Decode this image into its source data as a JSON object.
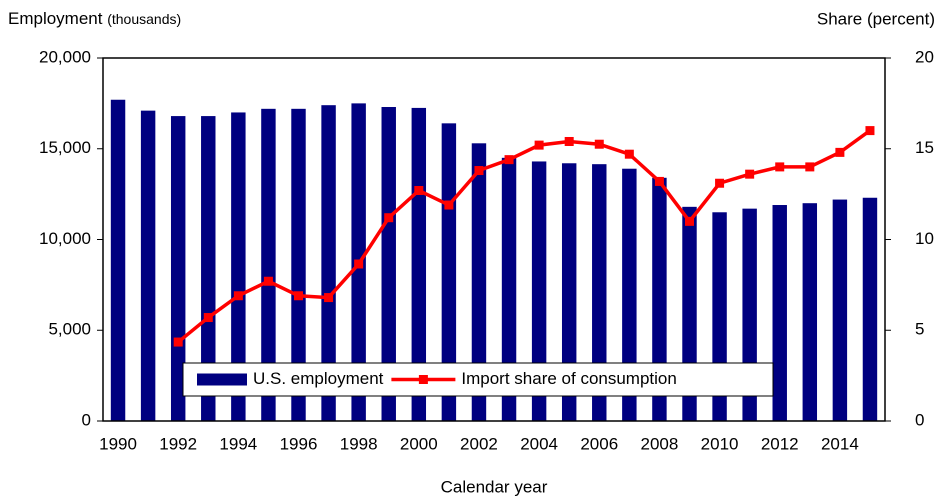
{
  "chart_data": {
    "type": "bar_line",
    "y_label": "Employment",
    "y_unit": "(thousands)",
    "y2_label": "Share (percent)",
    "x_label": "Calendar year",
    "categories": [
      "1990",
      null,
      "1992",
      null,
      "1994",
      null,
      "1996",
      null,
      "1998",
      null,
      "2000",
      null,
      "2002",
      null,
      "2004",
      null,
      "2006",
      null,
      "2008",
      null,
      "2010",
      null,
      "2012",
      null,
      "2014",
      null
    ],
    "series": [
      {
        "name": "U.S. employment",
        "type": "bar",
        "color": "#000080",
        "values": [
          17700,
          17100,
          16800,
          16800,
          17000,
          17200,
          17200,
          17400,
          17500,
          17300,
          17250,
          16400,
          15300,
          14500,
          14300,
          14200,
          14150,
          13900,
          13400,
          11800,
          11500,
          11700,
          11900,
          12000,
          12200,
          12300
        ]
      },
      {
        "name": "Import share of consumption",
        "type": "line",
        "axis": "y2",
        "color": "#ff0000",
        "values": [
          null,
          null,
          4.35,
          5.7,
          6.9,
          7.7,
          6.9,
          6.8,
          8.65,
          11.2,
          12.7,
          11.9,
          13.8,
          14.4,
          15.2,
          15.4,
          15.25,
          14.7,
          13.2,
          11.0,
          13.1,
          13.6,
          14.0,
          14.0,
          14.8,
          16.0
        ]
      }
    ],
    "ylim": [
      0,
      20000
    ],
    "yticks": [
      0,
      {
        "value": 5000,
        "label": "5,000"
      },
      {
        "value": 10000,
        "label": "10,000"
      },
      {
        "value": 15000,
        "label": "15,000"
      },
      {
        "value": 20000,
        "label": "20,000"
      }
    ],
    "y2lim": [
      0,
      20
    ],
    "y2ticks": [
      0,
      5,
      10,
      15,
      20
    ],
    "legend": "lower center"
  }
}
